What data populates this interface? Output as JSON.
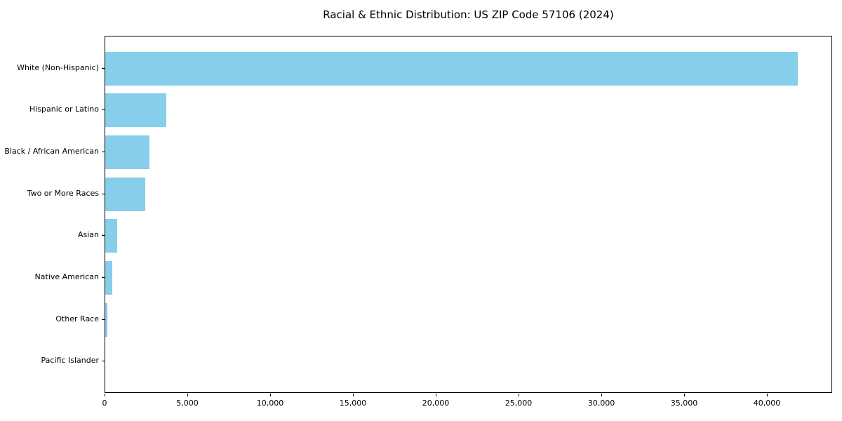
{
  "chart_data": {
    "type": "bar",
    "orientation": "horizontal",
    "title": "Racial & Ethnic Distribution: US ZIP Code 57106 (2024)",
    "categories": [
      "White (Non-Hispanic)",
      "Hispanic or Latino",
      "Black / African American",
      "Two or More Races",
      "Asian",
      "Native American",
      "Other Race",
      "Pacific Islander"
    ],
    "values": [
      41850,
      3690,
      2680,
      2420,
      710,
      420,
      130,
      20
    ],
    "xlabel": "",
    "ylabel": "",
    "xlim": [
      0,
      43950
    ],
    "xticks": [
      0,
      5000,
      10000,
      15000,
      20000,
      25000,
      30000,
      35000,
      40000
    ],
    "xtick_format": "thousands-comma",
    "grid": false,
    "legend": null,
    "bar_color": "#87CEEB",
    "axis_color": "#000000",
    "text_color": "#000000",
    "background_color": "#ffffff"
  }
}
